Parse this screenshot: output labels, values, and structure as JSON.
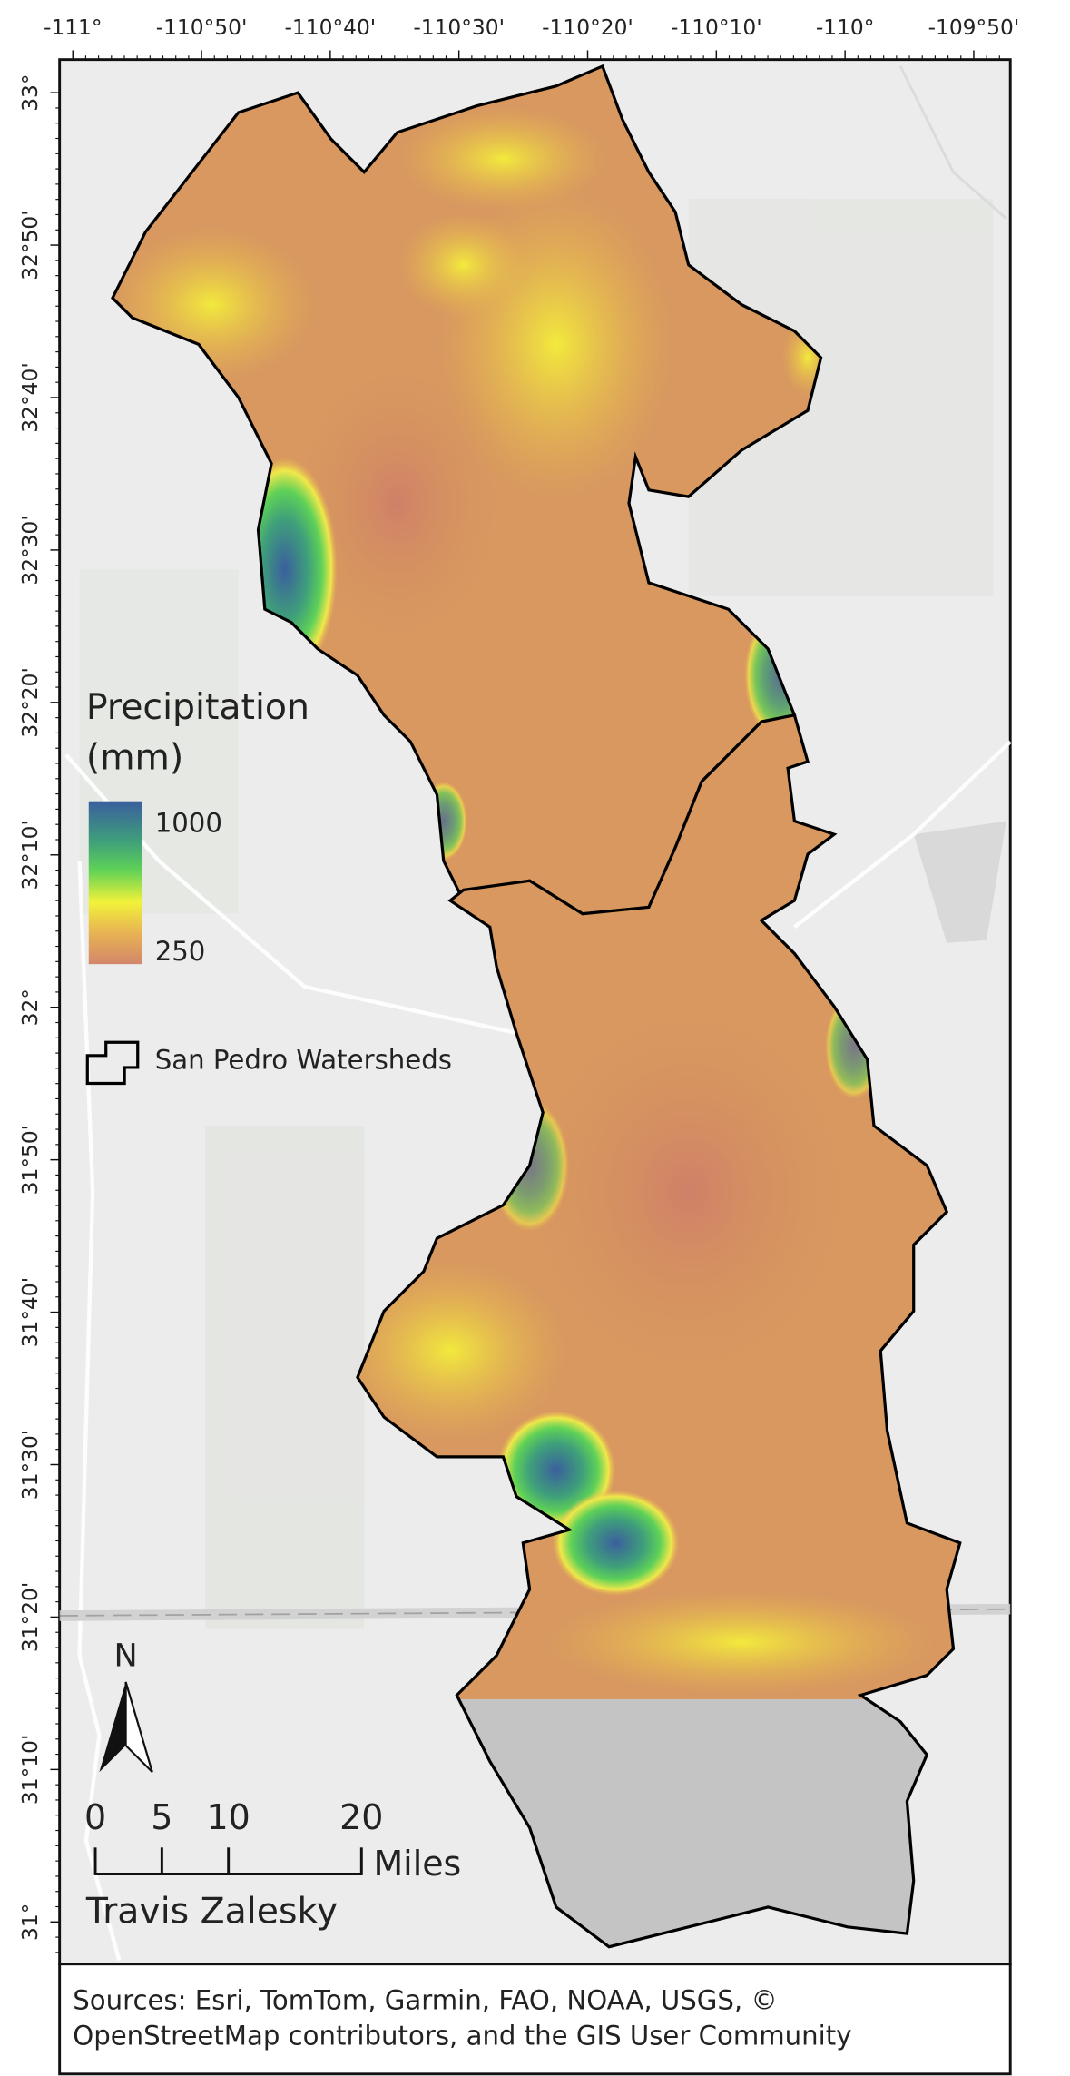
{
  "map": {
    "longitude_labels": [
      "-111°",
      "-110°50'",
      "-110°40'",
      "-110°30'",
      "-110°20'",
      "-110°10'",
      "-110°",
      "-109°50'"
    ],
    "latitude_labels": [
      "33°",
      "32°50'",
      "32°40'",
      "32°30'",
      "32°20'",
      "32°10'",
      "32°",
      "31°50'",
      "31°40'",
      "31°30'",
      "31°20'",
      "31°10'",
      "31°"
    ],
    "legend": {
      "title_lines": [
        "Precipitation",
        "(mm)"
      ],
      "ramp_max": "1000",
      "ramp_min": "250",
      "layer": "San Pedro Watersheds"
    },
    "north_label": "N",
    "scale_bar": {
      "labels": [
        0,
        5,
        10,
        20
      ],
      "unit": "Miles"
    },
    "author": "Travis Zalesky",
    "sources": [
      "Sources: Esri, TomTom, Garmin, FAO, NOAA, USGS, ©",
      "OpenStreetMap contributors, and the GIS User Community"
    ]
  }
}
